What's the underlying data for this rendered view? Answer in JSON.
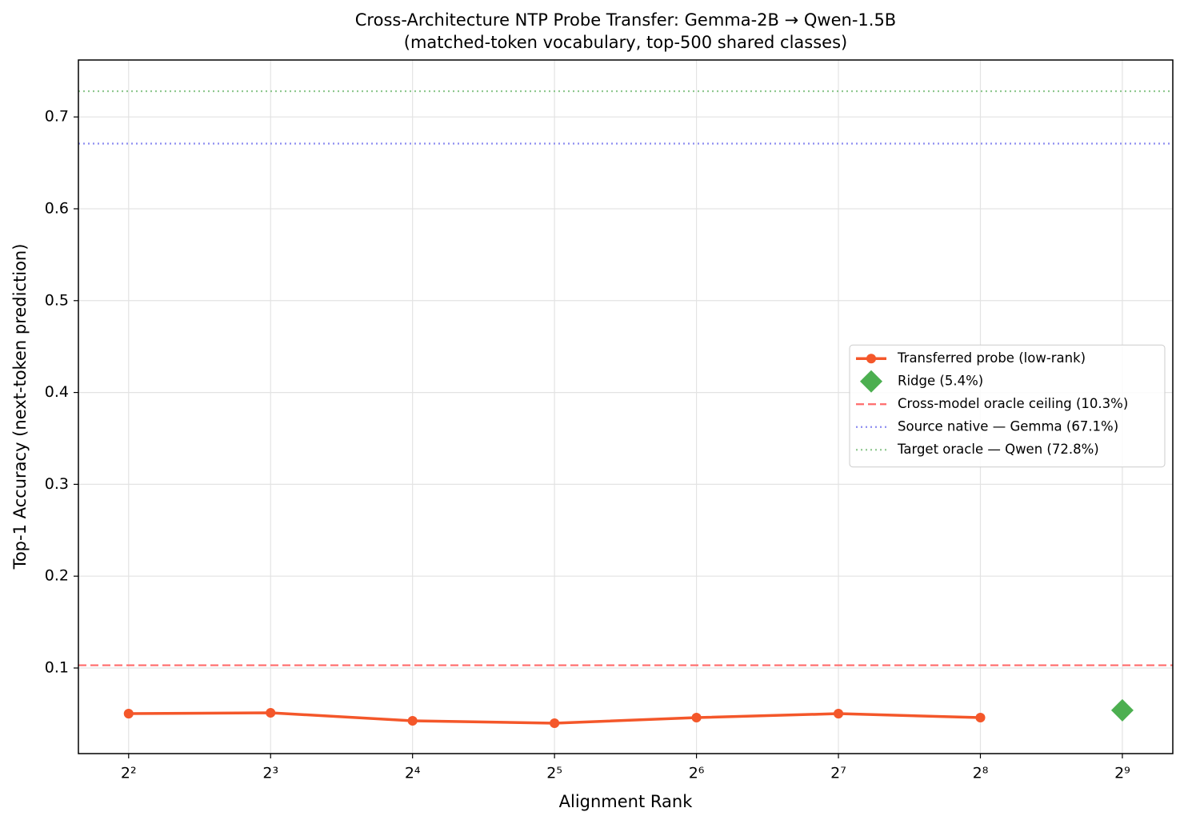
{
  "chart_data": {
    "type": "line",
    "title": "Cross-Architecture NTP Probe Transfer: Gemma-2B → Qwen-1.5B",
    "subtitle": "(matched-token vocabulary, top-500 shared classes)",
    "xlabel": "Alignment Rank",
    "ylabel": "Top-1 Accuracy (next-token prediction)",
    "xscale": "log2",
    "xlim": [
      3.13,
      655
    ],
    "ylim": [
      0.0068,
      0.762
    ],
    "xticks": [
      {
        "value": 4,
        "label": "2²"
      },
      {
        "value": 8,
        "label": "2³"
      },
      {
        "value": 16,
        "label": "2⁴"
      },
      {
        "value": 32,
        "label": "2⁵"
      },
      {
        "value": 64,
        "label": "2⁶"
      },
      {
        "value": 128,
        "label": "2⁷"
      },
      {
        "value": 256,
        "label": "2⁸"
      },
      {
        "value": 512,
        "label": "2⁹"
      }
    ],
    "yticks": [
      0.1,
      0.2,
      0.3,
      0.4,
      0.5,
      0.6,
      0.7
    ],
    "grid": true,
    "legend": "center right",
    "series": [
      {
        "name": "Transferred probe (low-rank)",
        "color": "#f4572a",
        "marker": "circle",
        "line": true,
        "x": [
          4,
          8,
          16,
          32,
          64,
          128,
          256
        ],
        "values": [
          0.0503,
          0.0512,
          0.0425,
          0.0399,
          0.046,
          0.0503,
          0.046
        ]
      },
      {
        "name": "Ridge (5.4%)",
        "color": "#4caf50",
        "marker": "diamond",
        "line": false,
        "x": [
          512
        ],
        "values": [
          0.054
        ]
      }
    ],
    "hlines": [
      {
        "name": "Cross-model oracle ceiling (10.3%)",
        "value": 0.103,
        "color": "#ff6b6b",
        "dash": "dashed"
      },
      {
        "name": "Source native — Gemma (67.1%)",
        "value": 0.671,
        "color": "#8c8cf0",
        "dash": "dotted"
      },
      {
        "name": "Target oracle — Qwen (72.8%)",
        "value": 0.728,
        "color": "#90c890",
        "dash": "dotted"
      }
    ]
  }
}
